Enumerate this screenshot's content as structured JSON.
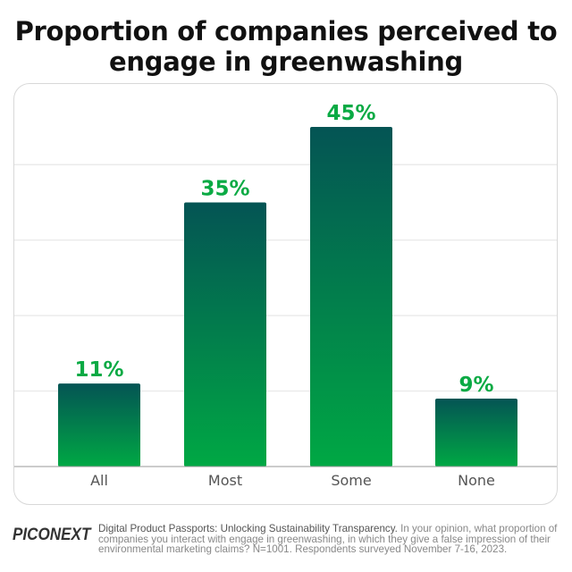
{
  "chart_data": {
    "type": "bar",
    "title": "Proportion of companies perceived to engage in greenwashing",
    "title_lines": [
      "Proportion of companies perceived to",
      "engage in greenwashing"
    ],
    "categories": [
      "All",
      "Most",
      "Some",
      "None"
    ],
    "values": [
      11,
      35,
      45,
      9
    ],
    "data_labels": [
      "11%",
      "35%",
      "45%",
      "9%"
    ],
    "xlabel": "",
    "ylabel": "",
    "ylim": [
      0,
      50
    ],
    "grid": true,
    "gridlines": [
      10,
      20,
      30,
      40
    ],
    "colors": {
      "bar_top": "#045454",
      "bar_bottom": "#00a844",
      "label": "#0aaa44",
      "tick": "#555555",
      "grid": "#ebebeb",
      "axis": "#999999"
    }
  },
  "footer": {
    "logo": "PICONEXT",
    "source_title": "Digital Product Passports: Unlocking Sustainability Transparency.",
    "source_text": " In your opinion, what proportion of companies you interact with engage in greenwashing, in which they give a false impression of their environmental marketing claims? N=1001. Respondents surveyed November 7-16, 2023."
  }
}
